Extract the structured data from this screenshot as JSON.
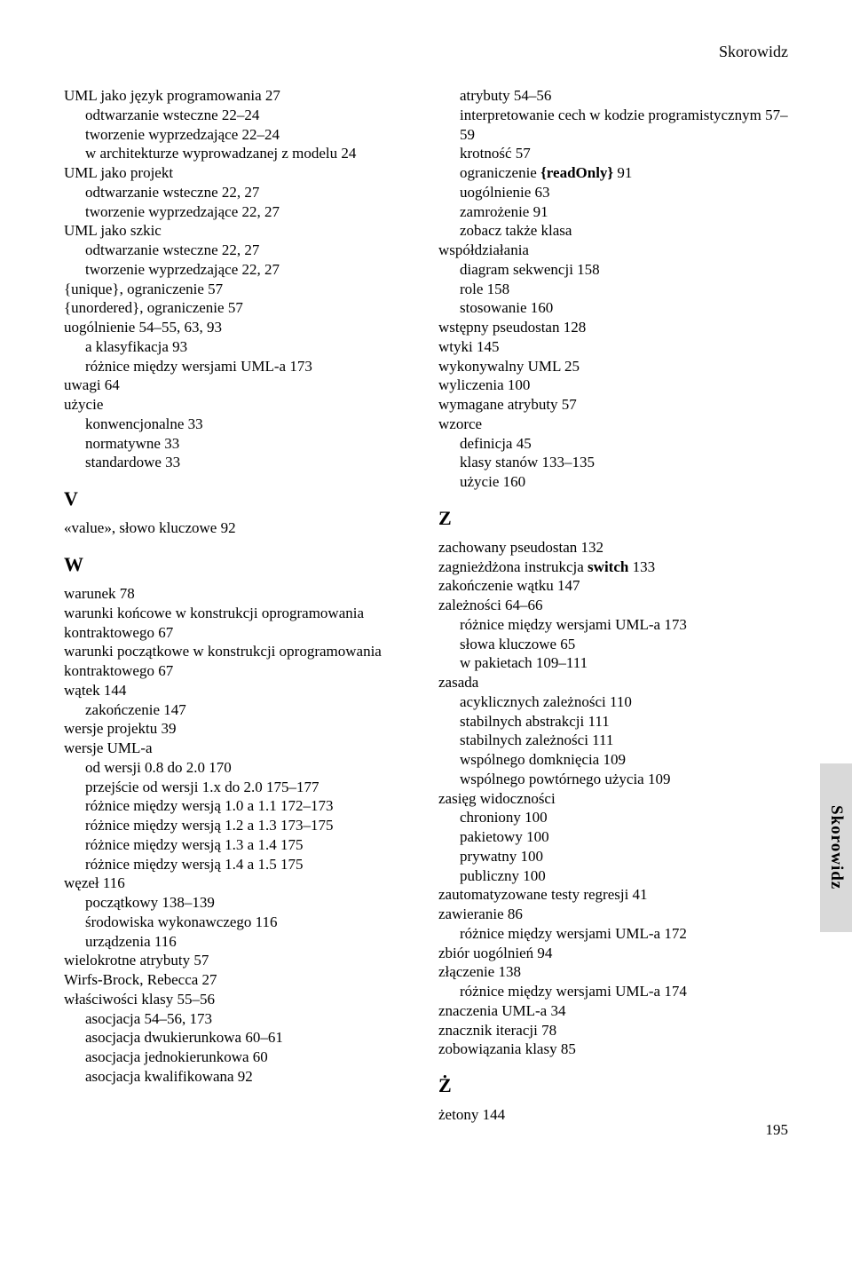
{
  "runningHead": "Skorowidz",
  "sideTab": "Skorowidz",
  "pageNumber": "195",
  "left": [
    {
      "t": "UML jako język programowania 27",
      "i": 0
    },
    {
      "t": "odtwarzanie wsteczne 22–24",
      "i": 1
    },
    {
      "t": "tworzenie wyprzedzające 22–24",
      "i": 1
    },
    {
      "t": "w architekturze wyprowadzanej z modelu 24",
      "i": 1
    },
    {
      "t": "UML jako projekt",
      "i": 0
    },
    {
      "t": "odtwarzanie wsteczne 22, 27",
      "i": 1
    },
    {
      "t": "tworzenie wyprzedzające 22, 27",
      "i": 1
    },
    {
      "t": "UML jako szkic",
      "i": 0
    },
    {
      "t": "odtwarzanie wsteczne 22, 27",
      "i": 1
    },
    {
      "t": "tworzenie wyprzedzające 22, 27",
      "i": 1
    },
    {
      "t": "{unique}, ograniczenie 57",
      "i": 0
    },
    {
      "t": "{unordered}, ograniczenie 57",
      "i": 0
    },
    {
      "t": "uogólnienie 54–55, 63, 93",
      "i": 0
    },
    {
      "t": "a klasyfikacja 93",
      "i": 1
    },
    {
      "t": "różnice między wersjami UML-a 173",
      "i": 1
    },
    {
      "t": "uwagi 64",
      "i": 0
    },
    {
      "t": "użycie",
      "i": 0
    },
    {
      "t": "konwencjonalne 33",
      "i": 1
    },
    {
      "t": "normatywne 33",
      "i": 1
    },
    {
      "t": "standardowe 33",
      "i": 1
    },
    {
      "letter": "V"
    },
    {
      "t": "«value», słowo kluczowe 92",
      "i": 0
    },
    {
      "letter": "W"
    },
    {
      "t": "warunek 78",
      "i": 0
    },
    {
      "t": "warunki końcowe w konstrukcji oprogramowania kontraktowego 67",
      "i": 0
    },
    {
      "t": "warunki początkowe w konstrukcji oprogramowania kontraktowego 67",
      "i": 0
    },
    {
      "t": "wątek 144",
      "i": 0
    },
    {
      "t": "zakończenie 147",
      "i": 1
    },
    {
      "t": "wersje projektu 39",
      "i": 0
    },
    {
      "t": "wersje UML-a",
      "i": 0
    },
    {
      "t": "od wersji 0.8 do 2.0 170",
      "i": 1
    },
    {
      "t": "przejście od wersji 1.x do 2.0 175–177",
      "i": 1
    },
    {
      "t": "różnice między wersją 1.0 a 1.1 172–173",
      "i": 1
    },
    {
      "t": "różnice między wersją 1.2 a 1.3 173–175",
      "i": 1
    },
    {
      "t": "różnice między wersją 1.3 a 1.4 175",
      "i": 1
    },
    {
      "t": "różnice między wersją 1.4 a 1.5 175",
      "i": 1
    },
    {
      "t": "węzeł 116",
      "i": 0
    },
    {
      "t": "początkowy 138–139",
      "i": 1
    },
    {
      "t": "środowiska wykonawczego 116",
      "i": 1
    },
    {
      "t": "urządzenia 116",
      "i": 1
    },
    {
      "t": "wielokrotne atrybuty 57",
      "i": 0
    },
    {
      "t": "Wirfs-Brock, Rebecca 27",
      "i": 0
    },
    {
      "t": "właściwości klasy 55–56",
      "i": 0
    },
    {
      "t": "asocjacja 54–56, 173",
      "i": 1
    },
    {
      "t": "asocjacja dwukierunkowa 60–61",
      "i": 1
    },
    {
      "t": "asocjacja jednokierunkowa 60",
      "i": 1
    },
    {
      "t": "asocjacja kwalifikowana 92",
      "i": 1
    }
  ],
  "right": [
    {
      "t": "atrybuty 54–56",
      "i": 1
    },
    {
      "t": "interpretowanie cech w kodzie programistycznym 57–59",
      "i": 1
    },
    {
      "t": "krotność 57",
      "i": 1
    },
    {
      "t": "ograniczenie {readOnly} 91",
      "i": 1,
      "bold": [
        "{readOnly}"
      ]
    },
    {
      "t": "uogólnienie 63",
      "i": 1
    },
    {
      "t": "zamrożenie 91",
      "i": 1
    },
    {
      "t": "zobacz także klasa",
      "i": 1
    },
    {
      "t": "współdziałania",
      "i": 0
    },
    {
      "t": "diagram sekwencji 158",
      "i": 1
    },
    {
      "t": "role 158",
      "i": 1
    },
    {
      "t": "stosowanie 160",
      "i": 1
    },
    {
      "t": "wstępny pseudostan 128",
      "i": 0
    },
    {
      "t": "wtyki 145",
      "i": 0
    },
    {
      "t": "wykonywalny UML 25",
      "i": 0
    },
    {
      "t": "wyliczenia 100",
      "i": 0
    },
    {
      "t": "wymagane atrybuty 57",
      "i": 0
    },
    {
      "t": "wzorce",
      "i": 0
    },
    {
      "t": "definicja 45",
      "i": 1
    },
    {
      "t": "klasy stanów 133–135",
      "i": 1
    },
    {
      "t": "użycie 160",
      "i": 1
    },
    {
      "letter": "Z"
    },
    {
      "t": "zachowany pseudostan 132",
      "i": 0
    },
    {
      "t": "zagnieżdżona instrukcja switch 133",
      "i": 0,
      "bold": [
        "switch"
      ]
    },
    {
      "t": "zakończenie wątku 147",
      "i": 0
    },
    {
      "t": "zależności 64–66",
      "i": 0
    },
    {
      "t": "różnice między wersjami UML-a 173",
      "i": 1
    },
    {
      "t": "słowa kluczowe 65",
      "i": 1
    },
    {
      "t": "w pakietach 109–111",
      "i": 1
    },
    {
      "t": "zasada",
      "i": 0
    },
    {
      "t": "acyklicznych zależności 110",
      "i": 1
    },
    {
      "t": "stabilnych abstrakcji 111",
      "i": 1
    },
    {
      "t": "stabilnych zależności 111",
      "i": 1
    },
    {
      "t": "wspólnego domknięcia 109",
      "i": 1
    },
    {
      "t": "wspólnego powtórnego użycia 109",
      "i": 1
    },
    {
      "t": "zasięg widoczności",
      "i": 0
    },
    {
      "t": "chroniony 100",
      "i": 1
    },
    {
      "t": "pakietowy 100",
      "i": 1
    },
    {
      "t": "prywatny 100",
      "i": 1
    },
    {
      "t": "publiczny 100",
      "i": 1
    },
    {
      "t": "zautomatyzowane testy regresji 41",
      "i": 0
    },
    {
      "t": "zawieranie 86",
      "i": 0
    },
    {
      "t": "różnice między wersjami UML-a 172",
      "i": 1
    },
    {
      "t": "zbiór uogólnień 94",
      "i": 0
    },
    {
      "t": "złączenie 138",
      "i": 0
    },
    {
      "t": "różnice między wersjami UML-a 174",
      "i": 1
    },
    {
      "t": "znaczenia UML-a 34",
      "i": 0
    },
    {
      "t": "znacznik iteracji 78",
      "i": 0
    },
    {
      "t": "zobowiązania klasy 85",
      "i": 0
    },
    {
      "letter": "Ż"
    },
    {
      "t": "żetony 144",
      "i": 0
    }
  ]
}
